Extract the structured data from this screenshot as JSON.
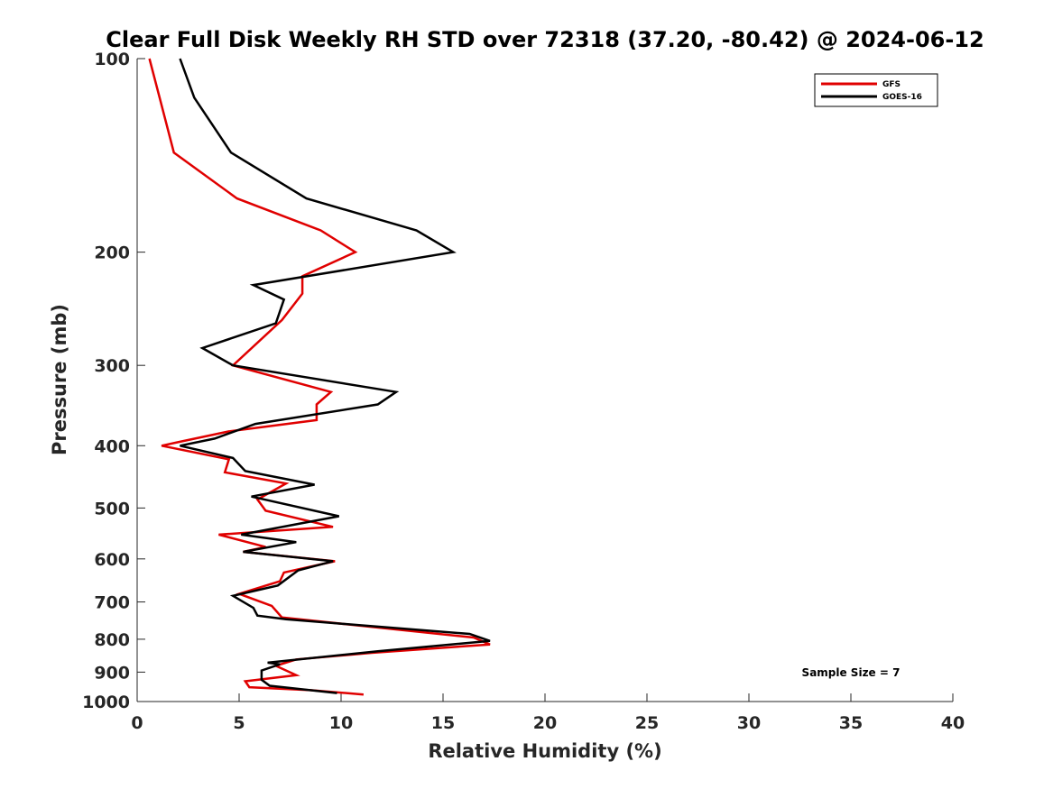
{
  "chart_data": {
    "type": "line",
    "title": "Clear Full Disk Weekly RH STD over 72318 (37.20, -80.42) @ 2024-06-12",
    "xlabel": "Relative Humidity (%)",
    "ylabel": "Pressure (mb)",
    "xlim": [
      0,
      40
    ],
    "ylim": [
      100,
      1000
    ],
    "yscale": "log",
    "yreversed": true,
    "xticks": [
      0,
      5,
      10,
      15,
      20,
      25,
      30,
      35,
      40
    ],
    "yticks": [
      100,
      200,
      300,
      400,
      500,
      600,
      700,
      800,
      900,
      1000
    ],
    "grid": false,
    "legend_location": "top-right",
    "annotation": "Sample Size = 7",
    "series": [
      {
        "name": "GFS",
        "color": "#e00000",
        "x": [
          0.6,
          1.1,
          1.8,
          4.9,
          9.0,
          10.7,
          8.1,
          8.1,
          7.1,
          4.7,
          9.5,
          8.8,
          8.8,
          4.5,
          2.0,
          1.2,
          4.5,
          4.3,
          7.3,
          5.9,
          6.3,
          9.6,
          4.0,
          6.3,
          5.2,
          9.7,
          7.2,
          7.0,
          5.0,
          6.6,
          6.6,
          7.1,
          16.5,
          17.3,
          11.5,
          7.8,
          6.8,
          7.8,
          5.3,
          5.5,
          8.5,
          11.1
        ],
        "y": [
          100,
          115,
          140,
          165,
          185,
          200,
          218,
          232,
          255,
          300,
          330,
          345,
          365,
          380,
          395,
          400,
          420,
          440,
          458,
          485,
          505,
          535,
          550,
          575,
          585,
          605,
          630,
          650,
          680,
          710,
          710,
          740,
          795,
          815,
          840,
          860,
          880,
          910,
          930,
          950,
          960,
          975
        ]
      },
      {
        "name": "GOES-16",
        "color": "#000000",
        "x": [
          2.1,
          2.8,
          4.6,
          8.3,
          13.7,
          15.5,
          5.7,
          7.2,
          6.8,
          3.2,
          4.7,
          12.7,
          11.8,
          5.8,
          3.8,
          2.1,
          4.7,
          5.3,
          8.7,
          5.6,
          9.9,
          5.1,
          7.8,
          5.2,
          9.6,
          7.9,
          6.9,
          4.7,
          5.7,
          5.9,
          7.3,
          16.3,
          17.3,
          11.8,
          6.4,
          7.0,
          6.1,
          6.1,
          6.5,
          9.8
        ],
        "y": [
          100,
          115,
          140,
          165,
          185,
          200,
          225,
          237,
          258,
          282,
          300,
          330,
          345,
          370,
          390,
          400,
          418,
          438,
          460,
          480,
          515,
          550,
          565,
          585,
          605,
          625,
          660,
          685,
          715,
          735,
          745,
          785,
          805,
          835,
          870,
          875,
          895,
          925,
          945,
          970
        ]
      }
    ]
  }
}
